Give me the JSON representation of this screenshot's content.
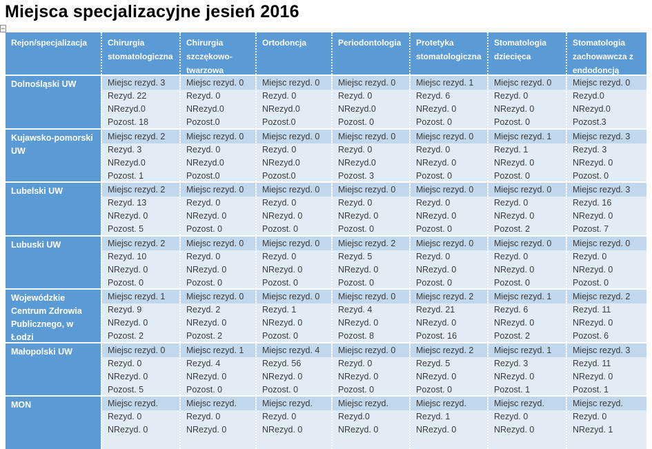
{
  "page": {
    "title": "Miejsca specjalizacyjne jesień 2016"
  },
  "colors": {
    "header_blue": "#5b9bd5",
    "band_blue": "#c1d7eb",
    "cell_blue": "#e1ecf7",
    "header_text": "#ffffff",
    "cell_text": "#3b3b3b"
  },
  "table": {
    "columns": [
      "Rejon/specjalizacja",
      "Chirurgia stomatologiczna",
      "Chirurgia szczękowo-twarzowa",
      "Ortodoncja",
      "Periodontologia",
      "Protetyka stomatologiczna",
      "Stomatologia dziecięca",
      "Stomatologia zachowawcza z endodoncją"
    ],
    "rows": [
      {
        "region": "Dolnośląski UW",
        "cells": [
          [
            "Miejsc rezyd. 3",
            "Rezyd. 22",
            "NRezyd.0",
            "Pozost. 18"
          ],
          [
            "Miejsc rezyd. 0",
            "Rezyd. 0",
            "NRezyd.0",
            "Pozost.0"
          ],
          [
            "Miejsc rezyd. 0",
            "Rezyd. 0",
            "NRezyd.0",
            "Pozost.0"
          ],
          [
            "Miejsc rezyd. 0",
            "Rezyd. 0",
            "NRezyd.0",
            "Pozost. 0"
          ],
          [
            "Miejsc rezyd. 1",
            "Rezyd. 6",
            "NRezyd. 0",
            "Pozost. 0"
          ],
          [
            "Miejsc rezyd. 0",
            "Rezyd. 0",
            "NRezyd. 0",
            "Pozost. 0"
          ],
          [
            "Miejsc rezyd. 0",
            "Rezyd.0",
            "NRezyd.0",
            "Pozost.3"
          ]
        ]
      },
      {
        "region": "Kujawsko-pomorski UW",
        "cells": [
          [
            "Miejsc rezyd. 2",
            "Rezyd. 3",
            "NRezyd.0",
            "Pozost. 1"
          ],
          [
            "Miejsc rezyd. 0",
            "Rezyd. 0",
            "NRezyd.0",
            "Pozost.0"
          ],
          [
            "Miejsc rezyd. 0",
            "Rezyd. 0",
            "NRezyd.0",
            "Pozost.0"
          ],
          [
            "Miejsc rezyd. 0",
            "Rezyd. 0",
            "NRezyd.0",
            "Pozost. 3"
          ],
          [
            "Miejsc rezyd. 0",
            "Rezyd. 0",
            "NRezyd. 0",
            "Pozost. 0"
          ],
          [
            "Miejsc rezyd. 1",
            "Rezyd. 1",
            "NRezyd. 0",
            "Pozost. 0"
          ],
          [
            "Miejsc rezyd. 3",
            "Rezyd. 3",
            "NRezyd. 0",
            "Pozost. 0"
          ]
        ]
      },
      {
        "region": "Lubelski UW",
        "cells": [
          [
            "Miejsc rezyd. 2",
            "Rezyd. 13",
            "NRezyd. 0",
            "Pozost. 5"
          ],
          [
            "Miejsc rezyd. 0",
            "Rezyd. 0",
            "NRezyd. 0",
            "Pozost. 0"
          ],
          [
            "Miejsc rezyd. 0",
            "Rezyd. 0",
            "NRezyd. 0",
            "Pozost. 0"
          ],
          [
            "Miejsc rezyd. 0",
            "Rezyd. 0",
            "NRezyd. 0",
            "Pozost. 0"
          ],
          [
            "Miejsc rezyd. 0",
            "Rezyd. 0",
            "NRezyd. 0",
            "Pozost. 0"
          ],
          [
            "Miejsc rezyd. 0",
            "Rezyd. 0",
            "NRezyd. 0",
            "Pozost. 2"
          ],
          [
            "Miejsc rezyd. 3",
            "Rezyd. 16",
            "NRezyd. 0",
            "Pozost. 7"
          ]
        ]
      },
      {
        "region": "Lubuski UW",
        "cells": [
          [
            "Miejsc rezyd. 2",
            "Rezyd. 10",
            "NRezyd. 0",
            "Pozost. 0"
          ],
          [
            "Miejsc rezyd. 0",
            "Rezyd. 0",
            "NRezyd. 0",
            "Pozost. 0"
          ],
          [
            "Miejsc rezyd. 0",
            "Rezyd. 0",
            "NRezyd. 0",
            "Pozost. 0"
          ],
          [
            "Miejsc rezyd. 2",
            "Rezyd. 5",
            "NRezyd. 0",
            "Pozost. 0"
          ],
          [
            "Miejsc rezyd. 0",
            "Rezyd. 0",
            "NRezyd. 0",
            "Pozost. 0"
          ],
          [
            "Miejsc rezyd. 0",
            "Rezyd. 0",
            "NRezyd. 0",
            "Pozost. 0"
          ],
          [
            "Miejsc rezyd. 0",
            "Rezyd. 0",
            "NRezyd. 0",
            "Pozost. 0"
          ]
        ]
      },
      {
        "region": "Wojewódzkie Centrum Zdrowia Publicznego, w Łodzi",
        "cells": [
          [
            "Miejsc rezyd. 1",
            "Rezyd. 9",
            "NRezyd. 0",
            "Pozost. 2"
          ],
          [
            "Miejsc rezyd. 0",
            "Rezyd. 2",
            "NRezyd. 0",
            "Pozost. 2"
          ],
          [
            "Miejsc rezyd. 0",
            "Rezyd. 1",
            "NRezyd. 0",
            "Pozost. 0"
          ],
          [
            "Miejsc rezyd. 0",
            "Rezyd. 4",
            "NRezyd. 0",
            "Pozost. 8"
          ],
          [
            "Miejsc rezyd. 2",
            "Rezyd. 21",
            "NRezyd. 0",
            "Pozost. 16"
          ],
          [
            "Miejsc rezyd. 1",
            "Rezyd. 6",
            "NRezyd. 0",
            "Pozost. 2"
          ],
          [
            "Miejsc rezyd. 2",
            "Rezyd. 11",
            "NRezyd. 0",
            "Pozost. 6"
          ]
        ]
      },
      {
        "region": "Małopolski UW",
        "cells": [
          [
            "Miejsc rezyd. 0",
            "Rezyd. 0",
            "NRezyd. 0",
            "Pozost. 5"
          ],
          [
            "Miejsc rezyd. 1",
            "Rezyd. 4",
            "NRezyd. 0",
            "Pozost. 0"
          ],
          [
            "Miejsc rezyd. 4",
            "Rezyd. 56",
            "NRezyd. 0",
            "Pozost. 0"
          ],
          [
            "Miejsc rezyd. 0",
            "Rezyd. 0",
            "NRezyd. 0",
            "Pozost. 0"
          ],
          [
            "Miejsc rezyd. 2",
            "Rezyd. 5",
            "NRezyd. 0",
            "Pozost. 0"
          ],
          [
            "Miejsc rezyd. 1",
            "Rezyd. 3",
            "NRezyd. 0",
            "Pozost. 1"
          ],
          [
            "Miejsc rezyd. 3",
            "Rezyd. 11",
            "NRezyd. 0",
            "Pozost. 1"
          ]
        ]
      },
      {
        "region": "MON",
        "cells": [
          [
            "Miejsc rezyd.",
            "Rezyd. 0",
            "NRezyd. 0"
          ],
          [
            "Miejsc rezyd.",
            "Rezyd. 0",
            "NRezyd. 0"
          ],
          [
            "Miejsc rezyd.",
            "Rezyd. 0",
            "NRezyd. 0"
          ],
          [
            "Miejsc rezyd.",
            "Rezyd.0",
            "NRezyd. 0"
          ],
          [
            "Miejsc rezyd.",
            "Rezyd. 1",
            "NRezyd. 0"
          ],
          [
            "Miejsc rezyd.",
            "Rezyd. 0",
            "NRezyd. 0"
          ],
          [
            "Miejsc rezyd.",
            "Rezyd. 0",
            "NRezyd. 1"
          ]
        ]
      }
    ]
  }
}
